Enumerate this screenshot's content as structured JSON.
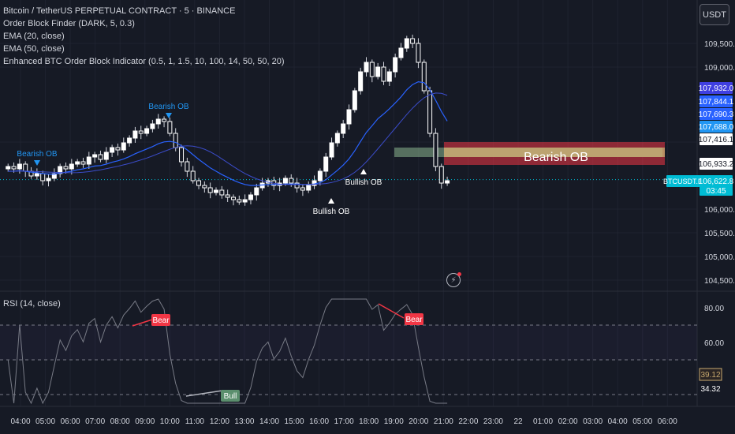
{
  "header": {
    "symbol_line": "Bitcoin / TetherUS PERPETUAL CONTRACT · 5 · BINANCE",
    "indicators": [
      "Order Block Finder (DARK, 5, 0.3)",
      "EMA (20, close)",
      "EMA (50, close)",
      "Enhanced BTC Order Block Indicator (0.5, 1, 1.5, 10, 100, 14, 50, 50, 20)"
    ],
    "currency": "USDT"
  },
  "rsi_panel": {
    "title": "RSI (14, close)",
    "levels": [
      80,
      60,
      34.32
    ],
    "overbought": 70,
    "oversold": 30,
    "midline": 50,
    "value_label": "39.12",
    "value_label_2": "34.32",
    "y_ticks": [
      "80.00",
      "60.00"
    ],
    "signals": [
      {
        "label": "Bear",
        "time": "09:00",
        "value": 70,
        "color": "#f23645"
      },
      {
        "label": "Bear",
        "time": "20:00",
        "value": 70,
        "color": "#f23645"
      },
      {
        "label": "Bull",
        "time": "11:45",
        "value": 30,
        "color": "#4caf50"
      }
    ]
  },
  "price_axis": {
    "ticks": [
      "109,500.0",
      "109,000.0",
      "107,416.1",
      "106,000.0",
      "105,500.0",
      "105,000.0",
      "104,500.0"
    ],
    "tick_values": [
      109500,
      109000,
      107416.1,
      106000,
      105500,
      105000,
      104500
    ],
    "badges": [
      {
        "text": "107,932.0",
        "value": 107932,
        "color": "#3f3fe0"
      },
      {
        "text": "107,844.1",
        "value": 107844.1,
        "color": "#2962ff"
      },
      {
        "text": "107,690.3",
        "value": 107690.3,
        "color": "#2962ff"
      },
      {
        "text": "107,688.0",
        "value": 107688,
        "color": "#2196f3"
      },
      {
        "text": "107,416.1",
        "value": 107416.1,
        "color": "#ffffff"
      },
      {
        "text": "106,933.2",
        "value": 106933.2,
        "color": "#ffffff"
      }
    ],
    "current": {
      "symbol": "BTCUSDT.P",
      "price": "106,622.8",
      "countdown": "03:45",
      "color": "#00bcd4"
    }
  },
  "time_axis": [
    "04:00",
    "05:00",
    "06:00",
    "07:00",
    "08:00",
    "09:00",
    "10:00",
    "11:00",
    "12:00",
    "13:00",
    "14:00",
    "15:00",
    "16:00",
    "17:00",
    "18:00",
    "19:00",
    "20:00",
    "21:00",
    "22:00",
    "23:00",
    "22",
    "01:00",
    "02:00",
    "03:00",
    "04:00",
    "05:00",
    "06:00"
  ],
  "annotations": {
    "bearish_ob_1": "Bearish OB",
    "bearish_ob_2": "Bearish OB",
    "bullish_ob_1": "Bullish OB",
    "bullish_ob_2": "Bullish OB",
    "zone_label": "Bearish OB"
  },
  "chart_data": {
    "type": "candlestick",
    "title": "Bitcoin / TetherUS PERPETUAL CONTRACT · 5 · BINANCE",
    "ylim": [
      104300,
      109900
    ],
    "x_start": "03:30",
    "x_end": "21:10",
    "close_approx": [
      106900,
      106850,
      106950,
      106800,
      106700,
      106750,
      106600,
      106650,
      106750,
      106900,
      106850,
      106950,
      107000,
      106950,
      107100,
      107150,
      107050,
      107200,
      107300,
      107250,
      107400,
      107500,
      107650,
      107600,
      107700,
      107800,
      107900,
      107850,
      107600,
      107300,
      107000,
      106800,
      106600,
      106500,
      106450,
      106350,
      106400,
      106300,
      106250,
      106200,
      106150,
      106200,
      106300,
      106450,
      106550,
      106600,
      106500,
      106550,
      106650,
      106550,
      106450,
      106400,
      106500,
      106600,
      106800,
      107100,
      107400,
      107600,
      107800,
      108100,
      108500,
      108900,
      109100,
      108800,
      109000,
      108700,
      108900,
      109200,
      109400,
      109600,
      109500,
      109100,
      108500,
      107600,
      106900,
      106550,
      106600
    ],
    "ema20_approx": [
      106800,
      106800,
      106810,
      106800,
      106780,
      106770,
      106750,
      106740,
      106740,
      106760,
      106780,
      106800,
      106830,
      106850,
      106880,
      106910,
      106920,
      106950,
      106990,
      107020,
      107060,
      107110,
      107170,
      107220,
      107270,
      107320,
      107380,
      107420,
      107430,
      107410,
      107340,
      107250,
      107150,
      107050,
      106960,
      106870,
      106800,
      106730,
      106670,
      106610,
      106560,
      106520,
      106500,
      106500,
      106510,
      106520,
      106520,
      106520,
      106530,
      106530,
      106530,
      106520,
      106520,
      106530,
      106560,
      106620,
      106720,
      106820,
      106930,
      107060,
      107230,
      107430,
      107620,
      107760,
      107910,
      108010,
      108120,
      108240,
      108370,
      108520,
      108630,
      108690,
      108670,
      108520,
      108300,
      108060,
      107860
    ]
  }
}
